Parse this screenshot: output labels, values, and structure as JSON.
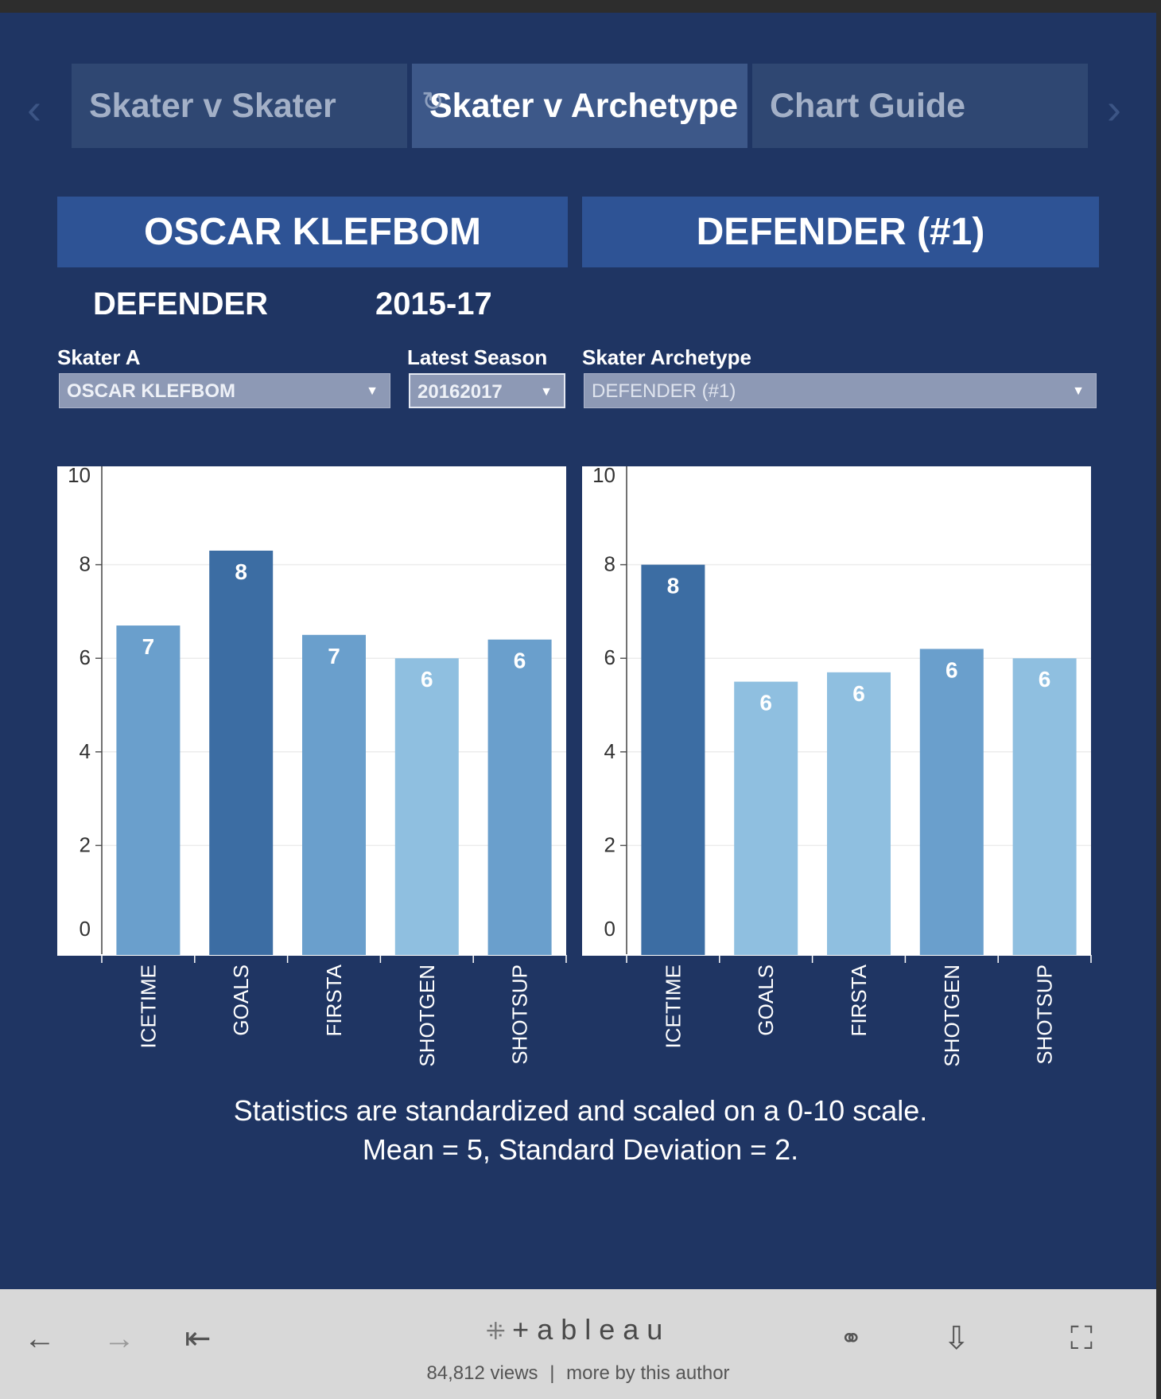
{
  "tabs": {
    "prev_arrow": "‹",
    "next_arrow": "›",
    "reload": "↻",
    "items": [
      {
        "label": "Skater v Skater"
      },
      {
        "label": "Skater v Archetype"
      },
      {
        "label": "Chart Guide"
      }
    ]
  },
  "header": {
    "left_title": "OSCAR KLEFBOM",
    "right_title": "DEFENDER (#1)",
    "position": "DEFENDER",
    "season": "2015-17"
  },
  "filters": {
    "skater_a": {
      "label": "Skater A",
      "value": "OSCAR KLEFBOM"
    },
    "latest_season": {
      "label": "Latest Season",
      "value": "20162017"
    },
    "archetype": {
      "label": "Skater Archetype",
      "value": "DEFENDER (#1)"
    }
  },
  "chart_data": [
    {
      "type": "bar",
      "title": "OSCAR KLEFBOM",
      "categories": [
        "ICETIME",
        "GOALS",
        "FIRSTA",
        "SHOTGEN",
        "SHOTSUP"
      ],
      "values": [
        6.7,
        8.3,
        6.5,
        6.0,
        6.4
      ],
      "labels": [
        "7",
        "8",
        "7",
        "6",
        "6"
      ],
      "colors": [
        "#6a9fcc",
        "#3c6da3",
        "#6a9fcc",
        "#8fbfe0",
        "#6a9fcc"
      ],
      "ylim": [
        0,
        10
      ],
      "yticks": [
        "0",
        "2",
        "4",
        "6",
        "8",
        "10"
      ],
      "grid": true
    },
    {
      "type": "bar",
      "title": "DEFENDER (#1)",
      "categories": [
        "ICETIME",
        "GOALS",
        "FIRSTA",
        "SHOTGEN",
        "SHOTSUP"
      ],
      "values": [
        8.0,
        5.5,
        5.7,
        6.2,
        6.0
      ],
      "labels": [
        "8",
        "6",
        "6",
        "6",
        "6"
      ],
      "colors": [
        "#3c6da3",
        "#8fbfe0",
        "#8fbfe0",
        "#6a9fcc",
        "#8fbfe0"
      ],
      "ylim": [
        0,
        10
      ],
      "yticks": [
        "0",
        "2",
        "4",
        "6",
        "8",
        "10"
      ],
      "grid": true
    }
  ],
  "notes": {
    "line1": "Statistics are standardized and scaled on a 0-10 scale.",
    "line2": "Mean = 5, Standard Deviation = 2."
  },
  "footer": {
    "back_icon": "←",
    "forward_icon": "→",
    "first_icon": "⇤",
    "logo": "+ableau",
    "views": "84,812 views",
    "separator": "|",
    "more_by_author": "more by this author",
    "share_icon": "⚭",
    "download_icon": "⇩",
    "fullscreen_icon": "⛶"
  }
}
